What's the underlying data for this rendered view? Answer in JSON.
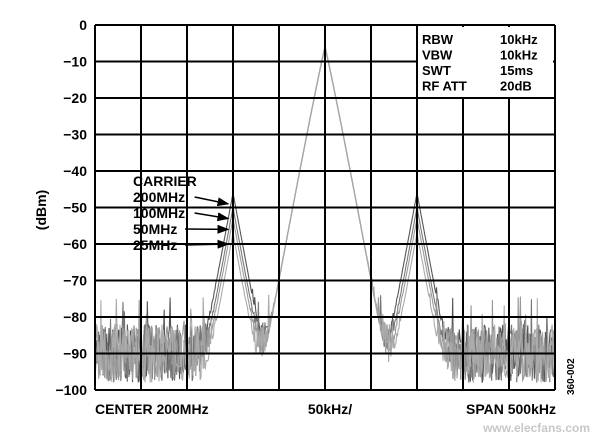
{
  "chart_data": {
    "type": "line",
    "ylabel": "(dBm)",
    "ylim": [
      -100,
      0
    ],
    "yticks": [
      "0",
      "−10",
      "−20",
      "−30",
      "−40",
      "−50",
      "−60",
      "−70",
      "−80",
      "−90",
      "−100"
    ],
    "x_divisions": 10,
    "grid": true,
    "bottom_labels": {
      "left": "CENTER 200MHz",
      "center": "50kHz/",
      "right": "SPAN 500kHz"
    },
    "settings": [
      {
        "label": "RBW",
        "value": "10kHz"
      },
      {
        "label": "VBW",
        "value": "10kHz"
      },
      {
        "label": "SWT",
        "value": "15ms"
      },
      {
        "label": "RF ATT",
        "value": "20dB"
      }
    ],
    "annotation_title": "CARRIER",
    "carrier_peak_dbm": -6,
    "sideband_offset_khz": 100,
    "noise_floor_dbm": -90,
    "series": [
      {
        "name": "200MHz",
        "sideband_dbm": -46
      },
      {
        "name": "100MHz",
        "sideband_dbm": -50
      },
      {
        "name": "50MHz",
        "sideband_dbm": -53
      },
      {
        "name": "25MHz",
        "sideband_dbm": -57
      }
    ],
    "figure_id": "360-002"
  },
  "watermark": "www.elecfans.com"
}
